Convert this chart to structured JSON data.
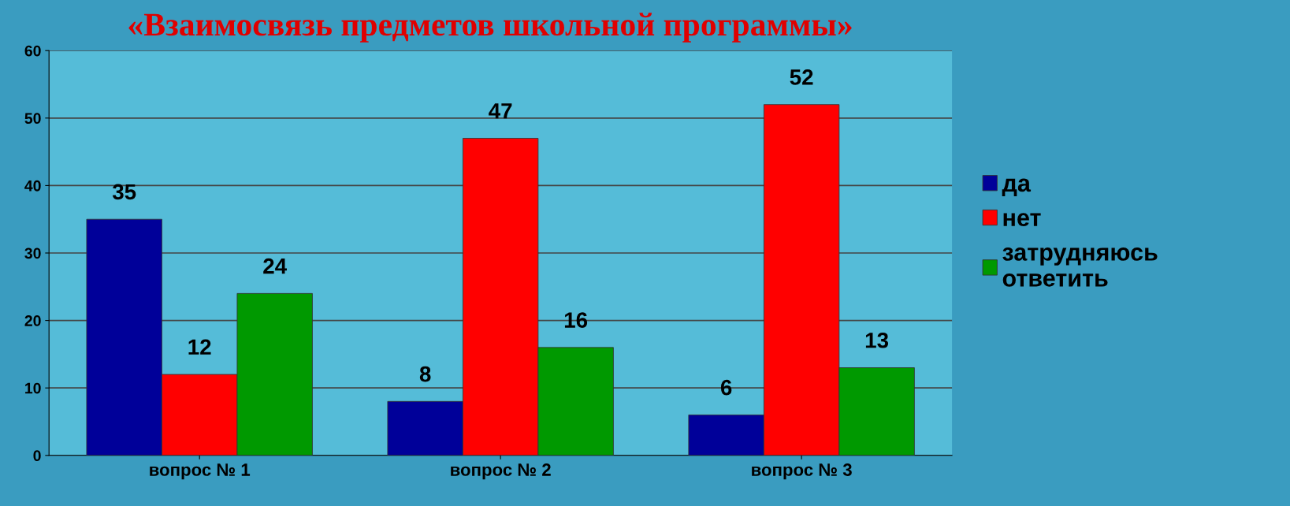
{
  "chart_data": {
    "type": "bar",
    "title": "«Взаимосвязь предметов школьной программы»",
    "categories": [
      "вопрос № 1",
      "вопрос № 2",
      "вопрос № 3"
    ],
    "series": [
      {
        "name": "да",
        "color": "#000099",
        "values": [
          35,
          8,
          6
        ]
      },
      {
        "name": "нет",
        "color": "#ff0000",
        "values": [
          12,
          47,
          52
        ]
      },
      {
        "name": "затрудняюсь\nответить",
        "color": "#009900",
        "values": [
          24,
          16,
          13
        ]
      }
    ],
    "ylim": [
      0,
      60
    ],
    "yticks": [
      0,
      10,
      20,
      30,
      40,
      50,
      60
    ],
    "grid": "y",
    "legend": "right",
    "data_labels": true
  }
}
